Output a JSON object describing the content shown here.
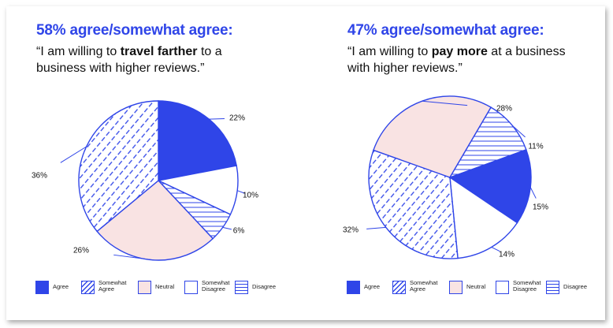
{
  "colors": {
    "accent": "#2f45e8",
    "neutral": "#f9e3e3",
    "line": "#2f45e8"
  },
  "panels": [
    {
      "headline": "58% agree/somewhat agree:",
      "quote_pre": "“I am willing to ",
      "quote_bold": "travel farther",
      "quote_post": " to a business with higher reviews.”"
    },
    {
      "headline": "47% agree/somewhat agree:",
      "quote_pre": "“I am willing to ",
      "quote_bold": "pay more",
      "quote_post": " at a business with higher reviews.”"
    }
  ],
  "legend": [
    {
      "label": "Agree",
      "pattern": "solid"
    },
    {
      "label": "Somewhat\nAgree",
      "pattern": "diag"
    },
    {
      "label": "Neutral",
      "pattern": "neutral"
    },
    {
      "label": "Somewhat\nDisagree",
      "pattern": "white"
    },
    {
      "label": "Disagree",
      "pattern": "horiz"
    }
  ],
  "chart_data": [
    {
      "type": "pie",
      "title": "58% agree/somewhat agree:",
      "categories": [
        "Agree",
        "Somewhat Disagree",
        "Disagree",
        "Neutral",
        "Somewhat Agree"
      ],
      "values": [
        22,
        10,
        6,
        26,
        36
      ],
      "labels": [
        "22%",
        "10%",
        "6%",
        "26%",
        "36%"
      ],
      "patterns": [
        "solid",
        "white",
        "horiz",
        "neutral",
        "diag"
      ],
      "start_angle_deg": 0
    },
    {
      "type": "pie",
      "title": "47% agree/somewhat agree:",
      "categories": [
        "Agree",
        "Somewhat Disagree",
        "Somewhat Agree",
        "Neutral",
        "Disagree"
      ],
      "values": [
        15,
        14,
        32,
        28,
        11
      ],
      "labels": [
        "15%",
        "14%",
        "32%",
        "28%",
        "11%"
      ],
      "patterns": [
        "solid",
        "white",
        "diag",
        "neutral",
        "horiz"
      ],
      "start_angle_deg": 70
    }
  ]
}
